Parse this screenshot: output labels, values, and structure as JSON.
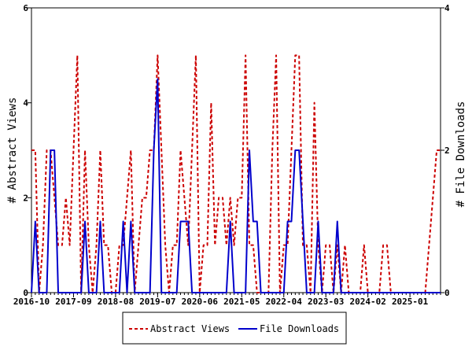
{
  "chart_data": {
    "type": "line",
    "xlabel": "",
    "ylabel_left": "# Abstract Views",
    "ylabel_right": "# File Downloads",
    "ylim_left": [
      0,
      6
    ],
    "ylim_right": [
      0,
      4
    ],
    "yticks_left": [
      "0",
      "2",
      "4",
      "6"
    ],
    "yticks_right": [
      "0",
      "2",
      "4"
    ],
    "x_start_month": "2016-10",
    "x_end_month": "2025-08",
    "x_tick_labels": [
      {
        "label": "2016-10",
        "index": 0
      },
      {
        "label": "2017-09",
        "index": 11
      },
      {
        "label": "2018-08",
        "index": 22
      },
      {
        "label": "2019-07",
        "index": 33
      },
      {
        "label": "2020-06",
        "index": 44
      },
      {
        "label": "2021-05",
        "index": 55
      },
      {
        "label": "2022-04",
        "index": 66
      },
      {
        "label": "2023-03",
        "index": 77
      },
      {
        "label": "2024-02",
        "index": 88
      },
      {
        "label": "2025-01",
        "index": 99
      }
    ],
    "legend_position": "bottom",
    "grid": false,
    "series": [
      {
        "name": "Abstract Views",
        "axis": "left",
        "color": "#cc0000",
        "style": "dashed",
        "values": [
          3,
          3,
          0,
          1,
          3,
          3,
          2,
          1,
          1,
          2,
          1,
          3,
          5,
          0,
          3,
          1,
          0,
          1,
          3,
          1,
          1,
          0,
          0,
          1,
          1,
          2,
          3,
          0,
          1,
          2,
          2,
          3,
          3,
          5,
          3,
          1,
          0,
          1,
          1,
          3,
          2,
          1,
          3,
          5,
          0,
          1,
          1,
          4,
          1,
          2,
          2,
          1,
          2,
          1,
          2,
          2,
          5,
          1,
          1,
          0,
          0,
          0,
          0,
          3,
          5,
          0,
          1,
          1,
          3,
          5,
          5,
          1,
          1,
          0,
          4,
          1,
          0,
          1,
          1,
          0,
          1,
          0,
          1,
          0,
          0,
          0,
          0,
          1,
          0,
          0,
          0,
          0,
          1,
          1,
          0,
          0,
          0,
          0,
          0,
          0,
          0,
          0,
          0,
          0,
          1,
          2,
          3,
          3
        ]
      },
      {
        "name": "File Downloads",
        "axis": "right",
        "color": "#0000cc",
        "style": "solid",
        "values": [
          0,
          1,
          0,
          0,
          0,
          2,
          2,
          0,
          0,
          0,
          0,
          0,
          0,
          0,
          1,
          0,
          0,
          0,
          1,
          0,
          0,
          0,
          0,
          0,
          1,
          0,
          1,
          0,
          0,
          0,
          0,
          0,
          2,
          3,
          0,
          0,
          0,
          0,
          0,
          1,
          1,
          1,
          0,
          0,
          0,
          0,
          0,
          0,
          0,
          0,
          0,
          0,
          1,
          0,
          0,
          0,
          0,
          2,
          1,
          1,
          0,
          0,
          0,
          0,
          0,
          0,
          0,
          1,
          1,
          2,
          2,
          1,
          0,
          0,
          0,
          1,
          0,
          0,
          0,
          0,
          1,
          0,
          0,
          0,
          0,
          0,
          0,
          0,
          0,
          0,
          0,
          0,
          0,
          0,
          0,
          0,
          0,
          0,
          0,
          0,
          0,
          0,
          0,
          0,
          0,
          0,
          0,
          0
        ]
      }
    ]
  }
}
